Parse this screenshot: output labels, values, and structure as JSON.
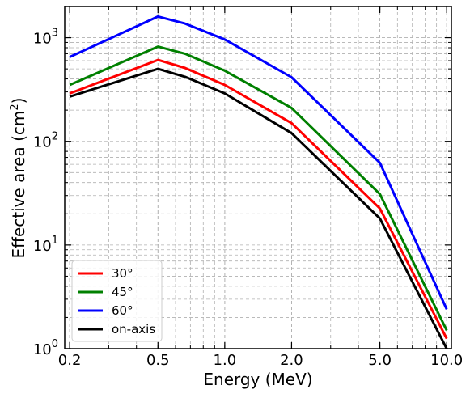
{
  "chart_data": {
    "type": "line",
    "xlabel": "Energy (MeV)",
    "ylabel_main": "Effective area (cm",
    "ylabel_sup": "2",
    "ylabel_close": ")",
    "x_scale": "log",
    "y_scale": "log",
    "xlim": [
      0.19,
      10.5
    ],
    "ylim": [
      1,
      2000
    ],
    "grid": true,
    "legend_position": "bottom-left",
    "x_ticks": [
      {
        "value": 0.2,
        "label": "0.2"
      },
      {
        "value": 0.5,
        "label": "0.5"
      },
      {
        "value": 1.0,
        "label": "1.0"
      },
      {
        "value": 2.0,
        "label": "2.0"
      },
      {
        "value": 5.0,
        "label": "5.0"
      },
      {
        "value": 10.0,
        "label": "10.0"
      }
    ],
    "y_ticks": [
      {
        "value": 1,
        "base": "10",
        "exp": "0"
      },
      {
        "value": 10,
        "base": "10",
        "exp": "1"
      },
      {
        "value": 100,
        "base": "10",
        "exp": "2"
      },
      {
        "value": 1000,
        "base": "10",
        "exp": "3"
      }
    ],
    "x": [
      0.2,
      0.5,
      0.662,
      1.0,
      2.0,
      5.0,
      10.0
    ],
    "series": [
      {
        "name": "30°",
        "color": "#ff0000",
        "values": [
          290,
          610,
          510,
          350,
          150,
          22.5,
          1.25
        ]
      },
      {
        "name": "45°",
        "color": "#008000",
        "values": [
          350,
          820,
          700,
          480,
          210,
          31,
          1.5
        ]
      },
      {
        "name": "60°",
        "color": "#0000ff",
        "values": [
          650,
          1600,
          1370,
          960,
          415,
          62,
          2.4
        ]
      },
      {
        "name": "on-axis",
        "color": "#000000",
        "values": [
          270,
          500,
          420,
          290,
          120,
          18,
          1.0
        ]
      }
    ]
  }
}
